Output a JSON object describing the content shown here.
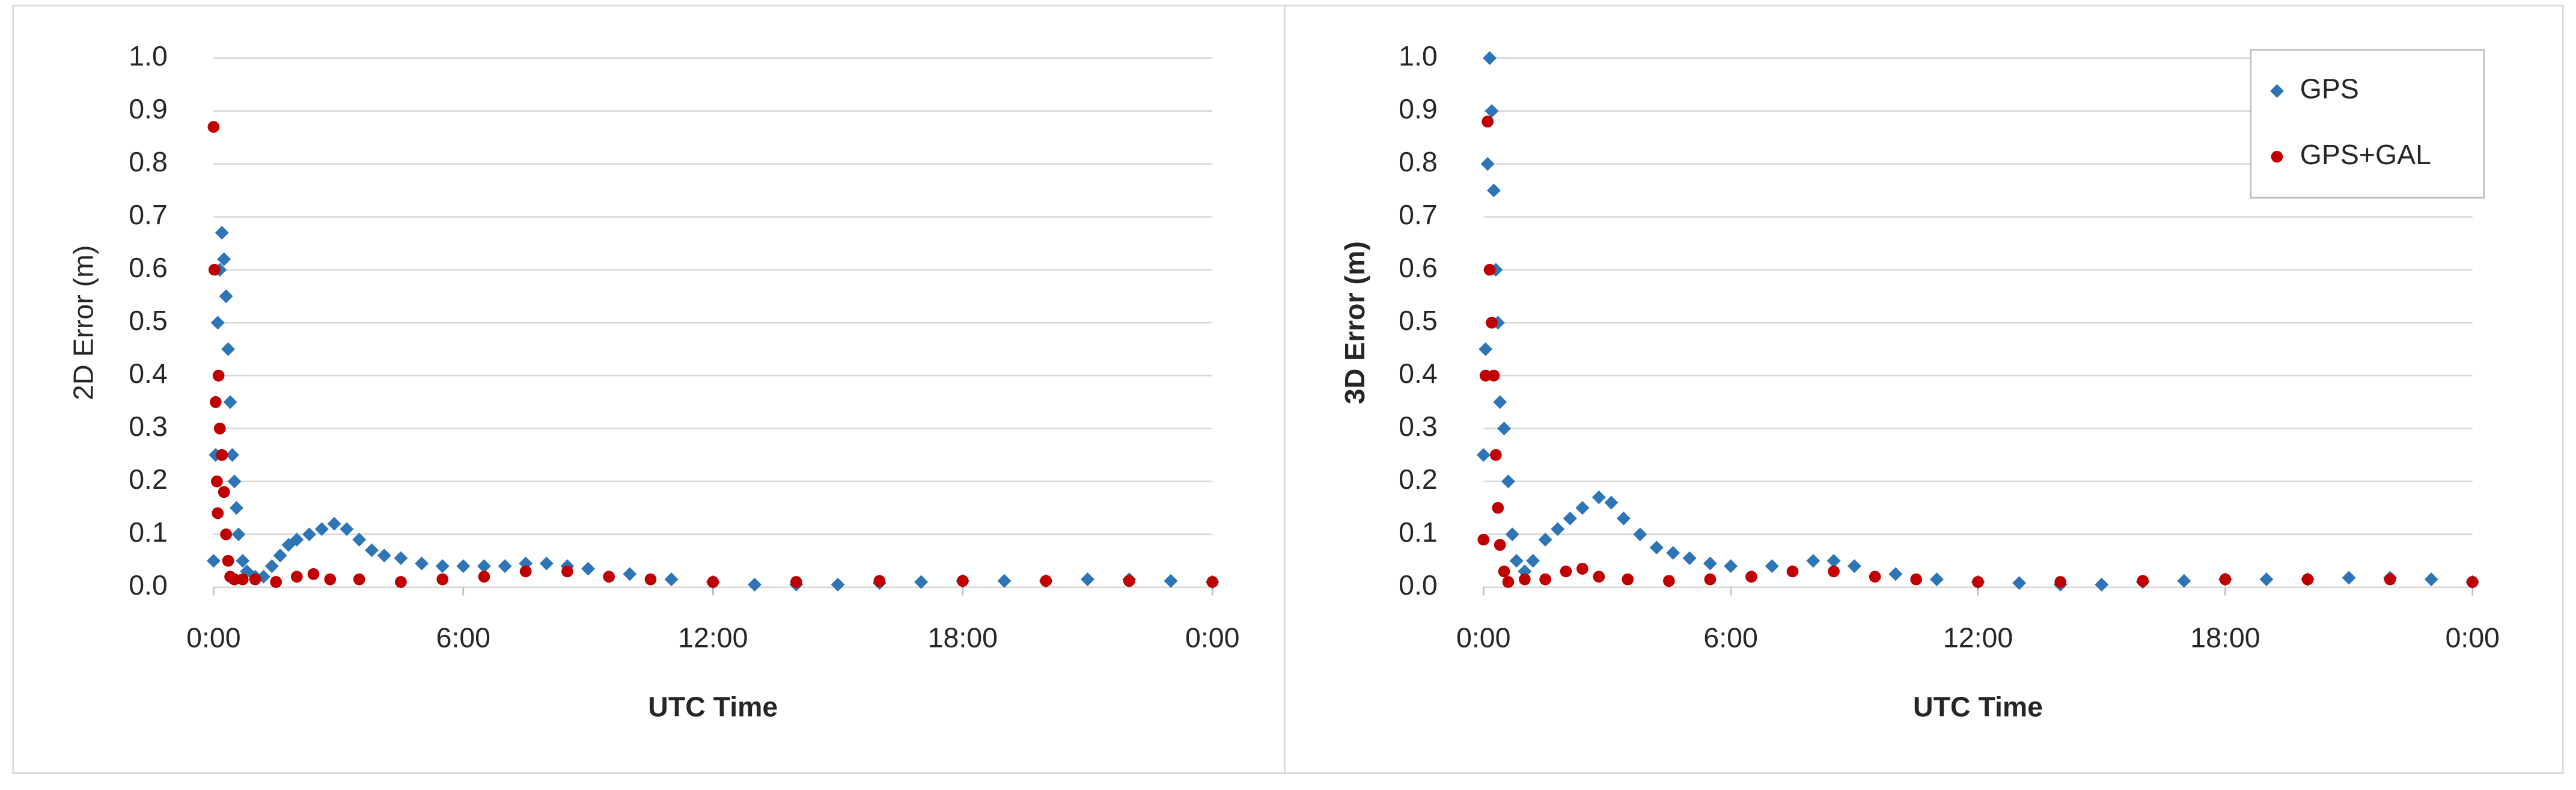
{
  "chart_data": [
    {
      "type": "scatter",
      "ylabel": "2D Error (m)",
      "xlabel": "UTC Time",
      "xlim": [
        0,
        24
      ],
      "xticks": [
        {
          "value": 0,
          "label": "0:00"
        },
        {
          "value": 6,
          "label": "6:00"
        },
        {
          "value": 12,
          "label": "12:00"
        },
        {
          "value": 18,
          "label": "18:00"
        },
        {
          "value": 24,
          "label": "0:00"
        }
      ],
      "ylim": [
        0,
        1
      ],
      "yticks": [
        {
          "value": 0,
          "label": "0.0"
        },
        0.1,
        0.2,
        0.3,
        0.4,
        0.5,
        0.6,
        0.7,
        0.8,
        0.9,
        {
          "value": 1,
          "label": "1.0"
        }
      ],
      "grid": true,
      "series": [
        {
          "color": "#2e75b6",
          "marker": "diamond",
          "x": [
            0.0,
            0.05,
            0.1,
            0.15,
            0.2,
            0.25,
            0.3,
            0.35,
            0.4,
            0.45,
            0.5,
            0.55,
            0.6,
            0.7,
            0.8,
            1.0,
            1.2,
            1.4,
            1.6,
            1.8,
            2.0,
            2.3,
            2.6,
            2.9,
            3.2,
            3.5,
            3.8,
            4.1,
            4.5,
            5,
            5.5,
            6,
            6.5,
            7,
            7.5,
            8,
            8.5,
            9,
            10,
            11,
            12,
            13,
            14,
            15,
            16,
            17,
            18,
            19,
            20,
            21,
            22,
            23,
            24
          ],
          "values": [
            0.05,
            0.25,
            0.5,
            0.6,
            0.67,
            0.62,
            0.55,
            0.45,
            0.35,
            0.25,
            0.2,
            0.15,
            0.1,
            0.05,
            0.03,
            0.02,
            0.02,
            0.04,
            0.06,
            0.08,
            0.09,
            0.1,
            0.11,
            0.12,
            0.11,
            0.09,
            0.07,
            0.06,
            0.055,
            0.045,
            0.04,
            0.04,
            0.04,
            0.04,
            0.045,
            0.045,
            0.04,
            0.035,
            0.025,
            0.015,
            0.01,
            0.005,
            0.005,
            0.005,
            0.008,
            0.01,
            0.012,
            0.012,
            0.012,
            0.015,
            0.015,
            0.012,
            0.01
          ]
        },
        {
          "color": "#c00000",
          "marker": "circle",
          "x": [
            0.0,
            0.02,
            0.05,
            0.08,
            0.1,
            0.12,
            0.15,
            0.2,
            0.25,
            0.3,
            0.35,
            0.4,
            0.5,
            0.7,
            1,
            1.5,
            2,
            2.4,
            2.8,
            3.5,
            4.5,
            5.5,
            6.5,
            7.5,
            8.5,
            9.5,
            10.5,
            12,
            14,
            16,
            18,
            20,
            22,
            24
          ],
          "values": [
            0.87,
            0.6,
            0.35,
            0.2,
            0.14,
            0.4,
            0.3,
            0.25,
            0.18,
            0.1,
            0.05,
            0.02,
            0.015,
            0.015,
            0.015,
            0.01,
            0.02,
            0.025,
            0.015,
            0.015,
            0.01,
            0.015,
            0.02,
            0.03,
            0.03,
            0.02,
            0.015,
            0.01,
            0.01,
            0.012,
            0.012,
            0.012,
            0.012,
            0.01
          ]
        }
      ]
    },
    {
      "type": "scatter",
      "ylabel": "3D Error (m)",
      "xlabel": "UTC Time",
      "xlim": [
        0,
        24
      ],
      "xticks": [
        {
          "value": 0,
          "label": "0:00"
        },
        {
          "value": 6,
          "label": "6:00"
        },
        {
          "value": 12,
          "label": "12:00"
        },
        {
          "value": 18,
          "label": "18:00"
        },
        {
          "value": 24,
          "label": "0:00"
        }
      ],
      "ylim": [
        0,
        1
      ],
      "yticks": [
        {
          "value": 0,
          "label": "0.0"
        },
        0.1,
        0.2,
        0.3,
        0.4,
        0.5,
        0.6,
        0.7,
        0.8,
        0.9,
        {
          "value": 1,
          "label": "1.0"
        }
      ],
      "grid": true,
      "legend": "upper right",
      "series": [
        {
          "name": "GPS",
          "color": "#2e75b6",
          "marker": "diamond",
          "x": [
            0,
            0.05,
            0.1,
            0.15,
            0.2,
            0.25,
            0.3,
            0.35,
            0.4,
            0.5,
            0.6,
            0.7,
            0.8,
            1,
            1.2,
            1.5,
            1.8,
            2.1,
            2.4,
            2.8,
            3.1,
            3.4,
            3.8,
            4.2,
            4.6,
            5,
            5.5,
            6,
            7,
            8,
            8.5,
            9,
            10,
            11,
            12,
            13,
            14,
            15,
            16,
            17,
            18,
            19,
            20,
            21,
            22,
            23,
            24
          ],
          "values": [
            0.25,
            0.45,
            0.8,
            1.0,
            0.9,
            0.75,
            0.6,
            0.5,
            0.35,
            0.3,
            0.2,
            0.1,
            0.05,
            0.03,
            0.05,
            0.09,
            0.11,
            0.13,
            0.15,
            0.17,
            0.16,
            0.13,
            0.1,
            0.075,
            0.065,
            0.055,
            0.045,
            0.04,
            0.04,
            0.05,
            0.05,
            0.04,
            0.025,
            0.015,
            0.01,
            0.008,
            0.005,
            0.005,
            0.01,
            0.012,
            0.015,
            0.015,
            0.015,
            0.018,
            0.018,
            0.015,
            0.01
          ]
        },
        {
          "name": "GPS+GAL",
          "color": "#c00000",
          "marker": "circle",
          "x": [
            0,
            0.05,
            0.1,
            0.15,
            0.2,
            0.25,
            0.3,
            0.35,
            0.4,
            0.5,
            0.6,
            1,
            1.5,
            2,
            2.4,
            2.8,
            3.5,
            4.5,
            5.5,
            6.5,
            7.5,
            8.5,
            9.5,
            10.5,
            12,
            14,
            16,
            18,
            20,
            22,
            24
          ],
          "values": [
            0.09,
            0.4,
            0.88,
            0.6,
            0.5,
            0.4,
            0.25,
            0.15,
            0.08,
            0.03,
            0.01,
            0.015,
            0.015,
            0.03,
            0.035,
            0.02,
            0.015,
            0.012,
            0.015,
            0.02,
            0.03,
            0.03,
            0.02,
            0.015,
            0.01,
            0.01,
            0.012,
            0.015,
            0.015,
            0.015,
            0.01
          ]
        }
      ]
    }
  ]
}
